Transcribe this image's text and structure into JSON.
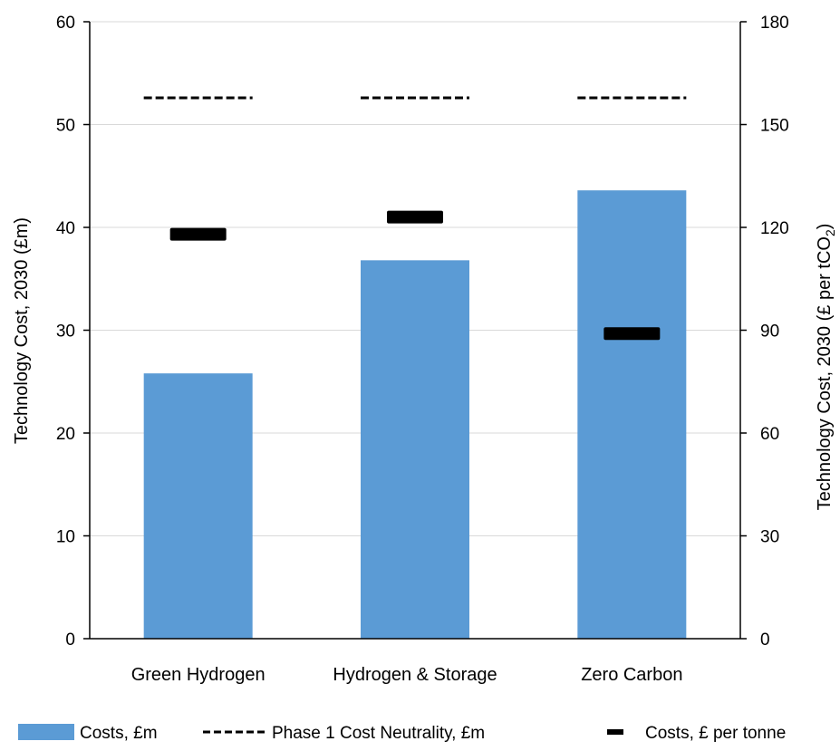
{
  "chart_data": {
    "type": "bar",
    "categories": [
      "Green Hydrogen",
      "Hydrogen & Storage",
      "Zero Carbon"
    ],
    "series": [
      {
        "name": "Costs, £m",
        "kind": "bar",
        "axis": "left",
        "color": "#5b9bd5",
        "values": [
          25.8,
          36.8,
          43.6
        ]
      },
      {
        "name": "Phase 1 Cost Neutrality, £m",
        "kind": "dashed-line",
        "axis": "left",
        "color": "#000000",
        "values": [
          52.6,
          52.6,
          52.6
        ]
      },
      {
        "name": "Costs, £ per tonne",
        "kind": "marker",
        "axis": "right",
        "color": "#000000",
        "values": [
          118,
          123,
          89
        ]
      }
    ],
    "y_left": {
      "label": "Technology Cost, 2030 (£m)",
      "ylim": [
        0,
        60
      ],
      "ticks": [
        "0",
        "10",
        "20",
        "30",
        "40",
        "50",
        "60"
      ]
    },
    "y_right": {
      "label_main": "Technology Cost, 2030 (£ per tCO",
      "label_sub": "2",
      "label_end": ")",
      "ylim": [
        0,
        180
      ],
      "ticks": [
        "0",
        "30",
        "60",
        "90",
        "120",
        "150",
        "180"
      ]
    },
    "grid": true,
    "legend": {
      "position": "bottom",
      "items": [
        "Costs, £m",
        "Phase 1 Cost Neutrality, £m",
        "Costs, £ per tonne"
      ]
    }
  }
}
